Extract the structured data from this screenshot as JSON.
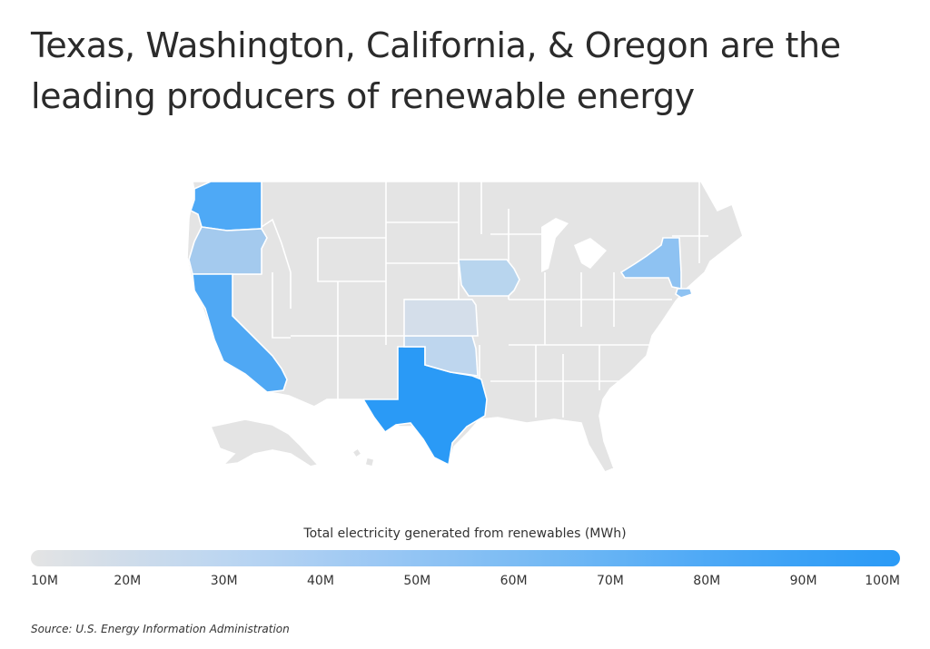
{
  "title": "Texas, Washington, California, & Oregon are the leading producers of renewable energy",
  "legend": {
    "title": "Total electricity generated from renewables (MWh)",
    "labels": [
      "10M",
      "20M",
      "30M",
      "40M",
      "50M",
      "60M",
      "70M",
      "80M",
      "90M",
      "100M"
    ],
    "colors": [
      "#e4e4e4",
      "#cfdcea",
      "#bcd6f1",
      "#a8cdf3",
      "#92c4f4",
      "#7cbcf4",
      "#65b3f5",
      "#4ea9f6",
      "#3aa1f6",
      "#2a9af6"
    ]
  },
  "source": "Source:  U.S. Energy Information Administration",
  "colors": {
    "base": "#e4e4e4",
    "border": "#ffffff",
    "texas": "#2a9af6",
    "washington": "#4ea9f6",
    "california": "#4fa8f4",
    "oregon": "#a4caee",
    "new_york": "#8ec2f2",
    "iowa": "#b8d5ee",
    "kansas": "#d4deea",
    "oklahoma": "#bed6ee",
    "new_jersey": "#8ec2f2"
  }
}
